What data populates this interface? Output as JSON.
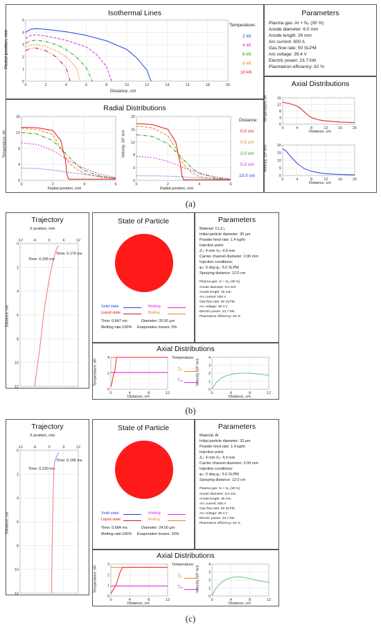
{
  "a": {
    "caption": "(a)",
    "isothermal": {
      "title": "Isothermal Lines",
      "xlabel": "Distance, cm",
      "ylabel": "Radial position, mm",
      "legend_title": "Temperature:",
      "legend": [
        "2 kK",
        "4 kK",
        "6 kK",
        "8 kK",
        "10 kK"
      ]
    },
    "parameters": {
      "title": "Parameters",
      "lines": [
        "Plasma gas: Ar + N₂ (30 %)",
        "Anode diameter: 6.0 mm",
        "Anode length: 26 mm",
        "Arc current: 600 A",
        "Gas flow rate: 50 SLPM",
        "Arc voltage: 39.4 V",
        "Electric power: 23.7 kW",
        "Plasmatron efficiency: 62 %"
      ]
    },
    "radial": {
      "title": "Radial Distributions",
      "temp_ylabel": "Temperature, kK",
      "vel_ylabel": "Velocity, 10² m/s",
      "xlabel": "Radial position, mm",
      "legend_title": "Distance:",
      "legend": [
        "0.0 cm",
        "0.5 cm",
        "2.0 cm",
        "5.0 cm",
        "10.0 cm"
      ]
    },
    "axial": {
      "title": "Axial Distributions",
      "temp_ylabel": "Temperature, kK",
      "vel_ylabel": "Velocity, 10² m/s",
      "xlabel": "Distance, cm"
    }
  },
  "b": {
    "caption": "(b)",
    "trajectory": {
      "title": "Trajectory",
      "xlabel": "X position, mm",
      "ylabel": "Distance, cm",
      "time1": "Time: 0.170 ms",
      "time2": "Time: 0.255 ms"
    },
    "particle": {
      "title": "State of Particle",
      "legend": [
        "Solid state",
        "Melting",
        "Liquid state",
        "Boiling"
      ],
      "time": "Time: 0.847 ms",
      "diameter": "Diameter: 20.00 μm",
      "melting": "Melting rate:100%",
      "evaporation": "Evaporation losses: 0%"
    },
    "parameters": {
      "title": "Parameters",
      "lines": [
        "Material: Cr₃C₂",
        "Initial particle diameter: 20 μm",
        "Powder feed rate: 1.4 kg/hr",
        "Injection point:",
        "Z₀: 4 mm    X₀: 4.0 mm",
        "Carrier channel diameter: 2.00 mm",
        "Injection conditions:",
        "φ₀: 0 deg    g₀: 5.0 SLPM",
        "Spraying distance: 12.0 cm"
      ],
      "sub": [
        "Plasma gas: Ar + N₂ (30 %)",
        "Anode diameter: 6.0 mm",
        "Anode length: 26 mm",
        "Arc current: 600 A",
        "Gas flow rate: 50 SLPM",
        "Arc voltage: 39.4 V",
        "Electric power: 23.7 kW",
        "Plasmatron efficiency: 62 %"
      ]
    },
    "axial": {
      "title": "Axial Distributions",
      "temp_ylabel": "Temperature, kK",
      "vel_ylabel": "Velocity, 10² m/s",
      "xlabel": "Distance, cm",
      "legend_title": "Temperature:",
      "tb": "Tᵦ",
      "tm": "Tₘ"
    }
  },
  "c": {
    "caption": "(c)",
    "trajectory": {
      "title": "Trajectory",
      "xlabel": "X position, mm",
      "ylabel": "Distance, cm",
      "time1": "Time: 0.145 ms",
      "time2": "Time: 0.220 ms"
    },
    "particle": {
      "title": "State of Particle",
      "legend": [
        "Solid state",
        "Melting",
        "Liquid state",
        "Boiling"
      ],
      "time": "Time: 0.684 ms",
      "diameter": "Diameter: 24.50 μm",
      "melting": "Melting rate:100%",
      "evaporation": "Evaporation losses: 20%"
    },
    "parameters": {
      "title": "Parameters",
      "lines": [
        "Material: Al",
        "Initial particle diameter: 32 μm",
        "Powder feed rate: 1.4 kg/hr",
        "Injection point:",
        "Z₀: 4 mm    X₀: 4.0 mm",
        "Carrier channel diameter: 2.00 mm",
        "Injection conditions:",
        "φ₀: 0 deg    g₀: 5.0 SLPM",
        "Spraying distance: 12.0 cm"
      ],
      "sub": [
        "Plasma gas: Ar + N₂ (30 %)",
        "Anode diameter: 6.0 mm",
        "Anode length: 26 mm",
        "Arc current: 600 A",
        "Gas flow rate: 50 SLPM",
        "Arc voltage: 39.4 V",
        "Electric power: 23.7 kW",
        "Plasmatron efficiency: 62 %"
      ]
    },
    "axial": {
      "title": "Axial Distributions",
      "temp_ylabel": "Temperature, kK",
      "vel_ylabel": "Velocity, 10² m/s",
      "xlabel": "Distance, cm",
      "legend_title": "Temperature:",
      "tb": "Tᵦ",
      "tm": "Tₘ"
    }
  },
  "colors": {
    "c2": "#1f3fe0",
    "c4": "#e020e0",
    "c6": "#10a010",
    "c8": "#f08010",
    "c10": "#e01010",
    "particle": "#ff1a1a",
    "vel": "#5fc87a"
  },
  "chart_data": [
    {
      "id": "iso",
      "type": "line",
      "xlim": [
        0,
        20
      ],
      "ylim": [
        0,
        5
      ],
      "xticks": [
        0,
        2,
        4,
        6,
        8,
        10,
        12,
        14,
        16,
        18,
        20
      ],
      "yticks": [
        0,
        1,
        2,
        3,
        4,
        5
      ],
      "series": [
        {
          "color": "#1f3fe0",
          "x": [
            0,
            0.5,
            1,
            2,
            4,
            6,
            8,
            10,
            11,
            12,
            12.4
          ],
          "y": [
            4.0,
            4.25,
            4.3,
            4.25,
            4.05,
            3.75,
            3.3,
            2.6,
            1.9,
            0.9,
            0
          ]
        },
        {
          "color": "#e020e0",
          "x": [
            0,
            0.5,
            1,
            2,
            4,
            6,
            7,
            8,
            8.5
          ],
          "y": [
            3.5,
            3.75,
            3.8,
            3.7,
            3.35,
            2.8,
            2.2,
            1.2,
            0
          ]
        },
        {
          "color": "#10a010",
          "x": [
            0,
            0.5,
            1,
            2,
            3,
            4,
            5,
            6,
            6.6
          ],
          "y": [
            3.1,
            3.3,
            3.35,
            3.25,
            3.0,
            2.6,
            2.0,
            1.1,
            0
          ]
        },
        {
          "color": "#f08010",
          "x": [
            0,
            0.5,
            1,
            2,
            3,
            4,
            5,
            5.4
          ],
          "y": [
            2.8,
            2.95,
            3.0,
            2.85,
            2.5,
            2.0,
            1.1,
            0
          ]
        },
        {
          "color": "#e01010",
          "x": [
            0,
            0.5,
            1,
            2,
            3,
            4,
            4.4
          ],
          "y": [
            2.5,
            2.7,
            2.72,
            2.5,
            2.0,
            1.1,
            0
          ]
        }
      ]
    },
    {
      "id": "radT",
      "type": "line",
      "xlim": [
        0,
        6
      ],
      "ylim": [
        0,
        16
      ],
      "xticks": [
        0,
        2,
        4,
        6
      ],
      "yticks": [
        0,
        4,
        8,
        12,
        16
      ],
      "series": [
        {
          "color": "#e01010",
          "x": [
            0,
            1,
            2,
            2.5,
            2.8,
            2.9,
            3.0,
            6
          ],
          "y": [
            13.3,
            13.2,
            12.5,
            10,
            5,
            1.5,
            0.3,
            0.3
          ]
        },
        {
          "color": "#f08010",
          "x": [
            0,
            1,
            2,
            2.5,
            3,
            3.5,
            4,
            5,
            6
          ],
          "y": [
            13.0,
            12.8,
            11.5,
            8,
            4.5,
            2.8,
            1.8,
            0.8,
            0.4
          ]
        },
        {
          "color": "#10a010",
          "x": [
            0,
            1,
            2,
            3,
            3.5,
            4,
            5,
            6
          ],
          "y": [
            12.0,
            11.6,
            10,
            6,
            4,
            2.5,
            1.1,
            0.5
          ]
        },
        {
          "color": "#e020e0",
          "x": [
            0,
            1,
            2,
            3,
            4,
            5,
            6
          ],
          "y": [
            9.4,
            9.0,
            7.5,
            5,
            3,
            1.6,
            0.7
          ]
        },
        {
          "color": "#1f3fe0",
          "x": [
            0,
            1,
            2,
            3,
            4,
            5,
            6
          ],
          "y": [
            3.1,
            3.0,
            2.6,
            2.0,
            1.5,
            1.0,
            0.6
          ]
        }
      ]
    },
    {
      "id": "radV",
      "type": "line",
      "xlim": [
        0,
        6
      ],
      "ylim": [
        0,
        20
      ],
      "xticks": [
        0,
        2,
        4,
        6
      ],
      "yticks": [
        0,
        4,
        8,
        12,
        16,
        20
      ],
      "series": [
        {
          "color": "#e01010",
          "x": [
            0,
            1,
            2,
            2.5,
            2.8,
            2.9,
            3.0,
            6
          ],
          "y": [
            17.8,
            17.5,
            16,
            12,
            5,
            1.5,
            0.2,
            0.2
          ]
        },
        {
          "color": "#f08010",
          "x": [
            0,
            1,
            2,
            2.5,
            3,
            3.5,
            4,
            5,
            6
          ],
          "y": [
            17.0,
            16.5,
            14,
            10,
            5,
            2.5,
            1.2,
            0.4,
            0.2
          ]
        },
        {
          "color": "#10a010",
          "x": [
            0,
            1,
            2,
            3,
            3.5,
            4,
            5,
            6
          ],
          "y": [
            14.3,
            13.8,
            11.5,
            6.5,
            4,
            2.2,
            0.8,
            0.3
          ]
        },
        {
          "color": "#e020e0",
          "x": [
            0,
            1,
            2,
            3,
            4,
            5,
            6
          ],
          "y": [
            7.5,
            7.2,
            6,
            4,
            2.3,
            1.1,
            0.4
          ]
        },
        {
          "color": "#1f3fe0",
          "x": [
            0,
            1,
            2,
            3,
            4,
            5,
            6
          ],
          "y": [
            1.5,
            1.45,
            1.3,
            1.1,
            0.8,
            0.5,
            0.3
          ]
        }
      ]
    },
    {
      "id": "axT",
      "type": "line",
      "xlim": [
        0,
        20
      ],
      "ylim": [
        0,
        16
      ],
      "xticks": [
        0,
        4,
        8,
        12,
        16,
        20
      ],
      "yticks": [
        0,
        4,
        8,
        12,
        16
      ],
      "series": [
        {
          "color": "#e01010",
          "x": [
            0,
            2,
            4,
            5,
            6,
            7,
            8,
            10,
            12,
            16,
            20
          ],
          "y": [
            13.3,
            12.5,
            11,
            9.5,
            7.5,
            5.5,
            4,
            2.6,
            2,
            1.3,
            1
          ]
        }
      ]
    },
    {
      "id": "axV",
      "type": "line",
      "xlim": [
        0,
        20
      ],
      "ylim": [
        0,
        20
      ],
      "xticks": [
        0,
        4,
        8,
        12,
        16,
        20
      ],
      "yticks": [
        0,
        5,
        10,
        15,
        20
      ],
      "series": [
        {
          "color": "#1f3fe0",
          "x": [
            0,
            1,
            2,
            4,
            6,
            8,
            10,
            12,
            16,
            20
          ],
          "y": [
            17.5,
            16,
            13,
            8,
            4.5,
            2.8,
            1.8,
            1.2,
            0.7,
            0.5
          ]
        }
      ]
    },
    {
      "id": "trajB",
      "type": "line",
      "xlim": [
        -12,
        12
      ],
      "ylim": [
        0,
        12
      ],
      "xticks": [
        -12,
        -6,
        0,
        6,
        12
      ],
      "yticks": [
        0,
        2,
        4,
        6,
        8,
        10,
        12
      ],
      "series": [
        {
          "color": "#ff7070",
          "x": [
            3,
            2.5,
            1.5,
            0,
            -2,
            -4,
            -6
          ],
          "y": [
            0.45,
            0.8,
            1.5,
            3,
            5.5,
            9,
            12
          ]
        },
        {
          "color": "#8888ff",
          "x": [
            4,
            3.5,
            3
          ],
          "y": [
            0.15,
            0.3,
            0.45
          ]
        }
      ]
    },
    {
      "id": "trajC",
      "type": "line",
      "xlim": [
        -12,
        12
      ],
      "ylim": [
        0,
        12
      ],
      "xticks": [
        -12,
        -6,
        0,
        6,
        12
      ],
      "yticks": [
        0,
        2,
        4,
        6,
        8,
        10,
        12
      ],
      "series": [
        {
          "color": "#ff7070",
          "x": [
            2.2,
            1.9,
            1.6,
            1.3,
            1.1,
            1.0
          ],
          "y": [
            1.0,
            2,
            4,
            7,
            10,
            12
          ]
        },
        {
          "color": "#8888ff",
          "x": [
            4,
            3.3,
            2.7,
            2.2
          ],
          "y": [
            0.2,
            0.4,
            0.7,
            1.0
          ]
        }
      ]
    },
    {
      "id": "axTb",
      "type": "line",
      "xlim": [
        0,
        12
      ],
      "ylim": [
        0,
        4
      ],
      "xticks": [
        0,
        4,
        8,
        12
      ],
      "yticks": [
        0,
        2,
        4
      ],
      "series": [
        {
          "color": "#e020e0",
          "x": [
            0,
            12
          ],
          "y": [
            2.1,
            2.1
          ]
        },
        {
          "color": "#f08010",
          "x": [
            0,
            12
          ],
          "y": [
            4.0,
            4.0
          ]
        },
        {
          "color": "#ff1a1a",
          "x": [
            0,
            0.3,
            0.6,
            0.8,
            1,
            1.2,
            12
          ],
          "y": [
            0.3,
            1.0,
            2.0,
            2.1,
            3.0,
            4.0,
            4.0
          ]
        }
      ]
    },
    {
      "id": "axVb",
      "type": "line",
      "xlim": [
        0,
        12
      ],
      "ylim": [
        0,
        4
      ],
      "xticks": [
        0,
        4,
        8,
        12
      ],
      "yticks": [
        0,
        1,
        2,
        3,
        4
      ],
      "series": [
        {
          "color": "#5fc87a",
          "x": [
            0,
            0.5,
            1,
            2,
            3,
            4,
            5,
            6,
            8,
            10,
            12
          ],
          "y": [
            0,
            0.5,
            0.9,
            1.4,
            1.7,
            1.85,
            1.95,
            2.0,
            2.0,
            1.9,
            1.75
          ]
        }
      ]
    },
    {
      "id": "axTc",
      "type": "line",
      "xlim": [
        0,
        12
      ],
      "ylim": [
        0,
        3
      ],
      "xticks": [
        0,
        4,
        8,
        12
      ],
      "yticks": [
        0,
        1,
        2,
        3
      ],
      "series": [
        {
          "color": "#e020e0",
          "x": [
            0,
            12
          ],
          "y": [
            0.93,
            0.93
          ]
        },
        {
          "color": "#f08010",
          "x": [
            0,
            12
          ],
          "y": [
            2.7,
            2.7
          ]
        },
        {
          "color": "#ff1a1a",
          "x": [
            0,
            0.5,
            1,
            1.5,
            2,
            2.5,
            12
          ],
          "y": [
            0.2,
            0.6,
            0.93,
            1.6,
            2.3,
            2.7,
            2.7
          ]
        }
      ]
    },
    {
      "id": "axVc",
      "type": "line",
      "xlim": [
        0,
        12
      ],
      "ylim": [
        0,
        4
      ],
      "xticks": [
        0,
        4,
        8,
        12
      ],
      "yticks": [
        0,
        1,
        2,
        3,
        4
      ],
      "series": [
        {
          "color": "#5fc87a",
          "x": [
            0,
            0.5,
            1,
            2,
            3,
            4,
            5,
            6,
            8,
            10,
            12
          ],
          "y": [
            0,
            0.6,
            1.1,
            1.7,
            2.1,
            2.3,
            2.4,
            2.4,
            2.2,
            1.9,
            1.7
          ]
        }
      ]
    }
  ]
}
